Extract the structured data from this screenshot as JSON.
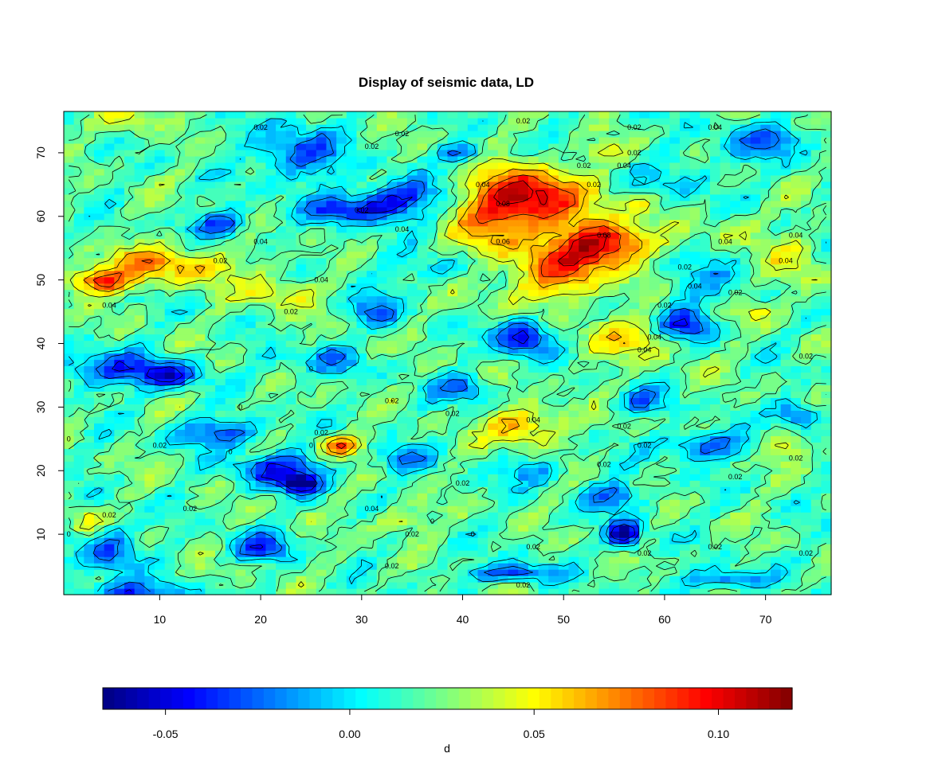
{
  "chart_data": {
    "type": "heatmap",
    "title": "Display of seismic data, LD",
    "xlabel": "",
    "ylabel": "",
    "xlim": [
      0.5,
      76.5
    ],
    "ylim": [
      0.5,
      76.5
    ],
    "grid": false,
    "x_ticks": [
      "10",
      "20",
      "30",
      "40",
      "50",
      "60",
      "70"
    ],
    "x_tick_values": [
      10,
      20,
      30,
      40,
      50,
      60,
      70
    ],
    "y_ticks": [
      "10",
      "20",
      "30",
      "40",
      "50",
      "60",
      "70"
    ],
    "y_tick_values": [
      10,
      20,
      30,
      40,
      50,
      60,
      70
    ],
    "colorbar": {
      "label": "d",
      "range": [
        -0.067,
        0.12
      ],
      "ticks": [
        "-0.05",
        "0.00",
        "0.05",
        "0.10"
      ],
      "tick_values": [
        -0.05,
        0.0,
        0.05,
        0.1
      ],
      "palette": [
        "#00007F",
        "#0000FF",
        "#007FFF",
        "#00FFFF",
        "#7FFF7F",
        "#FFFF00",
        "#FF7F00",
        "#FF0000",
        "#7F0000"
      ],
      "n_colors": 60
    },
    "field": {
      "grid_size": [
        76,
        76
      ],
      "background_value": 0.018,
      "features": [
        {
          "x": 47,
          "y": 63,
          "value": 0.105,
          "sx": 3.5,
          "sy": 3
        },
        {
          "x": 54,
          "y": 56,
          "value": 0.11,
          "sx": 3,
          "sy": 2.5
        },
        {
          "x": 43,
          "y": 58,
          "value": 0.06,
          "sx": 3,
          "sy": 6
        },
        {
          "x": 50,
          "y": 51,
          "value": 0.075,
          "sx": 3,
          "sy": 3
        },
        {
          "x": 4,
          "y": 50,
          "value": 0.085,
          "sx": 2.5,
          "sy": 1.5
        },
        {
          "x": 9,
          "y": 53,
          "value": 0.05,
          "sx": 3,
          "sy": 2
        },
        {
          "x": 13,
          "y": 52,
          "value": 0.045,
          "sx": 4,
          "sy": 2
        },
        {
          "x": 22,
          "y": 48,
          "value": 0.045,
          "sx": 3,
          "sy": 2
        },
        {
          "x": 28,
          "y": 24,
          "value": 0.085,
          "sx": 1.5,
          "sy": 1.2
        },
        {
          "x": 46,
          "y": 27,
          "value": 0.07,
          "sx": 2.5,
          "sy": 2
        },
        {
          "x": 3,
          "y": 12,
          "value": 0.055,
          "sx": 1.5,
          "sy": 1.5
        },
        {
          "x": 34,
          "y": 12,
          "value": 0.045,
          "sx": 2,
          "sy": 1.5
        },
        {
          "x": 7,
          "y": 75,
          "value": 0.05,
          "sx": 1.5,
          "sy": 1.5
        },
        {
          "x": 73,
          "y": 52,
          "value": 0.045,
          "sx": 2,
          "sy": 3
        },
        {
          "x": 57,
          "y": 41,
          "value": 0.05,
          "sx": 4,
          "sy": 2.5
        },
        {
          "x": 30,
          "y": 40,
          "value": 0.04,
          "sx": 1.5,
          "sy": 1.5
        },
        {
          "x": 24,
          "y": 40,
          "value": 0.04,
          "sx": 1.5,
          "sy": 1.5
        },
        {
          "x": 58,
          "y": 62,
          "value": 0.045,
          "sx": 1.5,
          "sy": 1
        },
        {
          "x": 67,
          "y": 58,
          "value": 0.04,
          "sx": 2,
          "sy": 2
        },
        {
          "x": 72,
          "y": 24,
          "value": 0.045,
          "sx": 1.5,
          "sy": 1.5
        },
        {
          "x": 56,
          "y": 10,
          "value": -0.065,
          "sx": 1.2,
          "sy": 1.5
        },
        {
          "x": 46,
          "y": 41,
          "value": -0.05,
          "sx": 2,
          "sy": 2
        },
        {
          "x": 62,
          "y": 43,
          "value": -0.045,
          "sx": 2,
          "sy": 2
        },
        {
          "x": 29,
          "y": 61,
          "value": -0.04,
          "sx": 3,
          "sy": 1.5
        },
        {
          "x": 34,
          "y": 63,
          "value": -0.035,
          "sx": 3,
          "sy": 2
        },
        {
          "x": 22,
          "y": 20,
          "value": -0.04,
          "sx": 3,
          "sy": 2
        },
        {
          "x": 24,
          "y": 18,
          "value": -0.045,
          "sx": 1.2,
          "sy": 1
        },
        {
          "x": 20,
          "y": 8,
          "value": -0.035,
          "sx": 2,
          "sy": 1.5
        },
        {
          "x": 5,
          "y": 36,
          "value": -0.03,
          "sx": 4,
          "sy": 2
        },
        {
          "x": 11,
          "y": 35,
          "value": -0.035,
          "sx": 2,
          "sy": 1.5
        },
        {
          "x": 73,
          "y": 29,
          "value": -0.035,
          "sx": 1.5,
          "sy": 1.5
        },
        {
          "x": 64,
          "y": 24,
          "value": -0.03,
          "sx": 3,
          "sy": 1.5
        },
        {
          "x": 45,
          "y": 4,
          "value": -0.035,
          "sx": 3,
          "sy": 1
        },
        {
          "x": 5,
          "y": 8,
          "value": -0.03,
          "sx": 2,
          "sy": 3
        },
        {
          "x": 7,
          "y": 1,
          "value": -0.03,
          "sx": 4,
          "sy": 1
        },
        {
          "x": 24,
          "y": 70,
          "value": -0.03,
          "sx": 3,
          "sy": 3
        },
        {
          "x": 40,
          "y": 70,
          "value": -0.025,
          "sx": 2,
          "sy": 1
        },
        {
          "x": 16,
          "y": 59,
          "value": -0.03,
          "sx": 2,
          "sy": 1.5
        },
        {
          "x": 26,
          "y": 38,
          "value": -0.02,
          "sx": 3,
          "sy": 2
        },
        {
          "x": 16,
          "y": 26,
          "value": -0.03,
          "sx": 3,
          "sy": 1.5
        },
        {
          "x": 31,
          "y": 45,
          "value": -0.02,
          "sx": 2,
          "sy": 2
        },
        {
          "x": 38,
          "y": 52,
          "value": -0.005,
          "sx": 4,
          "sy": 2
        },
        {
          "x": 70,
          "y": 72,
          "value": -0.02,
          "sx": 3,
          "sy": 2
        },
        {
          "x": 66,
          "y": 3,
          "value": -0.025,
          "sx": 3,
          "sy": 1
        },
        {
          "x": 55,
          "y": 16,
          "value": -0.025,
          "sx": 2,
          "sy": 1.5
        },
        {
          "x": 40,
          "y": 33,
          "value": -0.02,
          "sx": 2,
          "sy": 1.5
        },
        {
          "x": 58,
          "y": 31,
          "value": -0.015,
          "sx": 2,
          "sy": 1.5
        },
        {
          "x": 34,
          "y": 22,
          "value": -0.015,
          "sx": 2,
          "sy": 1.5
        },
        {
          "x": 47,
          "y": 20,
          "value": -0.015,
          "sx": 2,
          "sy": 1.5
        },
        {
          "x": 62,
          "y": 66,
          "value": 0.0,
          "sx": 3,
          "sy": 3
        },
        {
          "x": 64,
          "y": 50,
          "value": 0.0,
          "sx": 3,
          "sy": 3
        },
        {
          "x": 69,
          "y": 45,
          "value": 0.045,
          "sx": 1.5,
          "sy": 1
        },
        {
          "x": 54,
          "y": 70,
          "value": 0.045,
          "sx": 2,
          "sy": 1
        }
      ]
    },
    "contour_labels": [
      {
        "x": 20,
        "y": 74,
        "text": "0.02"
      },
      {
        "x": 34,
        "y": 73,
        "text": "0.02"
      },
      {
        "x": 46,
        "y": 75,
        "text": "0.02"
      },
      {
        "x": 57,
        "y": 74,
        "text": "0.02"
      },
      {
        "x": 65,
        "y": 74,
        "text": "0.04"
      },
      {
        "x": 31,
        "y": 71,
        "text": "0.02"
      },
      {
        "x": 52,
        "y": 68,
        "text": "0.02"
      },
      {
        "x": 57,
        "y": 70,
        "text": "0.02"
      },
      {
        "x": 56,
        "y": 68,
        "text": "0.04"
      },
      {
        "x": 42,
        "y": 65,
        "text": "0.04"
      },
      {
        "x": 53,
        "y": 65,
        "text": "0.02"
      },
      {
        "x": 44,
        "y": 62,
        "text": "0.08"
      },
      {
        "x": 30,
        "y": 61,
        "text": "0.02"
      },
      {
        "x": 34,
        "y": 58,
        "text": "0.04"
      },
      {
        "x": 54,
        "y": 57,
        "text": "0.08"
      },
      {
        "x": 44,
        "y": 56,
        "text": "0.06"
      },
      {
        "x": 20,
        "y": 56,
        "text": "0.04"
      },
      {
        "x": 16,
        "y": 53,
        "text": "0.02"
      },
      {
        "x": 66,
        "y": 56,
        "text": "0.04"
      },
      {
        "x": 73,
        "y": 57,
        "text": "0.04"
      },
      {
        "x": 72,
        "y": 53,
        "text": "0.04"
      },
      {
        "x": 62,
        "y": 52,
        "text": "0.02"
      },
      {
        "x": 26,
        "y": 50,
        "text": "0.04"
      },
      {
        "x": 63,
        "y": 49,
        "text": "0.04"
      },
      {
        "x": 67,
        "y": 48,
        "text": "0.02"
      },
      {
        "x": 5,
        "y": 46,
        "text": "0.04"
      },
      {
        "x": 23,
        "y": 45,
        "text": "0.02"
      },
      {
        "x": 60,
        "y": 46,
        "text": "0.02"
      },
      {
        "x": 59,
        "y": 41,
        "text": "0.04"
      },
      {
        "x": 58,
        "y": 39,
        "text": "0.04"
      },
      {
        "x": 74,
        "y": 38,
        "text": "0.02"
      },
      {
        "x": 33,
        "y": 31,
        "text": "0.02"
      },
      {
        "x": 39,
        "y": 29,
        "text": "0.02"
      },
      {
        "x": 47,
        "y": 28,
        "text": "0.04"
      },
      {
        "x": 56,
        "y": 27,
        "text": "0.02"
      },
      {
        "x": 26,
        "y": 26,
        "text": "0.02"
      },
      {
        "x": 10,
        "y": 24,
        "text": "0.02"
      },
      {
        "x": 58,
        "y": 24,
        "text": "0.02"
      },
      {
        "x": 54,
        "y": 21,
        "text": "0.02"
      },
      {
        "x": 40,
        "y": 18,
        "text": "0.02"
      },
      {
        "x": 67,
        "y": 19,
        "text": "0.02"
      },
      {
        "x": 13,
        "y": 14,
        "text": "0.02"
      },
      {
        "x": 31,
        "y": 14,
        "text": "0.04"
      },
      {
        "x": 5,
        "y": 13,
        "text": "0.02"
      },
      {
        "x": 35,
        "y": 10,
        "text": "0.02"
      },
      {
        "x": 47,
        "y": 8,
        "text": "0.02"
      },
      {
        "x": 58,
        "y": 7,
        "text": "0.02"
      },
      {
        "x": 65,
        "y": 8,
        "text": "0.02"
      },
      {
        "x": 33,
        "y": 5,
        "text": "0.02"
      },
      {
        "x": 46,
        "y": 2,
        "text": "0.02"
      },
      {
        "x": 73,
        "y": 22,
        "text": "0.02"
      },
      {
        "x": 74,
        "y": 7,
        "text": "0.02"
      },
      {
        "x": 25,
        "y": 24,
        "text": "0"
      },
      {
        "x": 17,
        "y": 23,
        "text": "0"
      },
      {
        "x": 1,
        "y": 25,
        "text": "0"
      },
      {
        "x": 37,
        "y": 12,
        "text": "0"
      },
      {
        "x": 41,
        "y": 10,
        "text": "0"
      },
      {
        "x": 18,
        "y": 30,
        "text": "0"
      },
      {
        "x": 25,
        "y": 36,
        "text": "0"
      },
      {
        "x": 1,
        "y": 10,
        "text": "0"
      }
    ]
  }
}
